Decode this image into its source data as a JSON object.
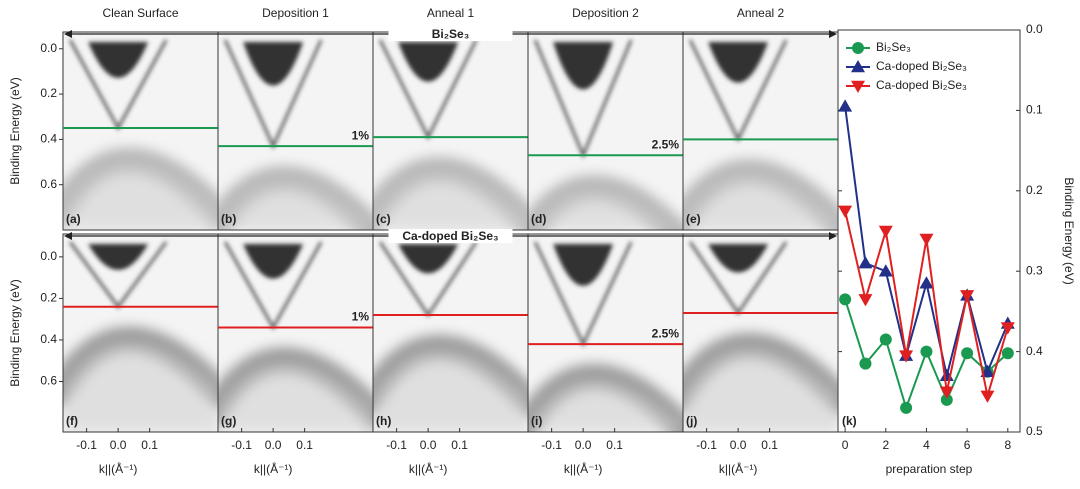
{
  "figure": {
    "columns": [
      "Clean Surface",
      "Deposition 1",
      "Anneal 1",
      "Deposition 2",
      "Anneal 2"
    ],
    "y_label": "Binding Energy (eV)",
    "x_label": "k||(Å⁻¹)",
    "k_range": [
      -0.175,
      0.317
    ],
    "k_ticks": [
      -0.1,
      {
        "value": 0,
        "label": "0.0"
      },
      0.1
    ],
    "energy_ticks": [
      {
        "value": 0,
        "label": "0.0"
      },
      0.2,
      0.4,
      0.6
    ],
    "rows": [
      {
        "banner": "Bi₂Se₃",
        "color": "#1a9a50",
        "ylim": [
          -0.074,
          0.8
        ],
        "panels": [
          {
            "label": "(a)",
            "line_energy": 0.35
          },
          {
            "label": "(b)",
            "line_energy": 0.43,
            "annotation": "1%"
          },
          {
            "label": "(c)",
            "line_energy": 0.39
          },
          {
            "label": "(d)",
            "line_energy": 0.47,
            "annotation": "2.5%"
          },
          {
            "label": "(e)",
            "line_energy": 0.4
          }
        ]
      },
      {
        "banner": "Ca-doped Bi₂Se₃",
        "color": "#e02020",
        "ylim": [
          -0.11,
          0.843
        ],
        "panels": [
          {
            "label": "(f)",
            "line_energy": 0.24
          },
          {
            "label": "(g)",
            "line_energy": 0.34,
            "annotation": "1%"
          },
          {
            "label": "(h)",
            "line_energy": 0.28
          },
          {
            "label": "(i)",
            "line_energy": 0.42,
            "annotation": "2.5%"
          },
          {
            "label": "(j)",
            "line_energy": 0.27
          }
        ]
      }
    ]
  },
  "chart_data": {
    "type": "line",
    "label": "(k)",
    "x_label": "preparation step",
    "y_label": "Binding Energy (eV)",
    "x": [
      0,
      1,
      2,
      3,
      4,
      5,
      6,
      7,
      8
    ],
    "xlim": [
      -0.35,
      8.6
    ],
    "xticks": [
      0,
      2,
      4,
      6,
      8
    ],
    "ylim": [
      0,
      0.5
    ],
    "inverted_y": true,
    "yticks": [
      {
        "value": 0,
        "label": "0.0"
      },
      0.1,
      0.2,
      0.3,
      0.4,
      0.5
    ],
    "legend": "upper left",
    "series": [
      {
        "name": "Bi₂Se₃",
        "color": "#1a9a50",
        "marker": "circle",
        "values": [
          0.335,
          0.415,
          0.385,
          0.47,
          0.4,
          0.46,
          0.402,
          0.425,
          0.402
        ]
      },
      {
        "name": "Ca-doped Bi₂Se₃",
        "color": "#22308a",
        "marker": "triangle-up",
        "values": [
          0.095,
          0.29,
          0.3,
          0.405,
          0.315,
          0.43,
          0.33,
          0.425,
          0.365
        ]
      },
      {
        "name": "Ca-doped Bi₂Se₃",
        "color": "#e02020",
        "marker": "triangle-down",
        "values": [
          0.225,
          0.335,
          0.25,
          0.405,
          0.26,
          0.45,
          0.33,
          0.455,
          0.37
        ]
      }
    ]
  }
}
